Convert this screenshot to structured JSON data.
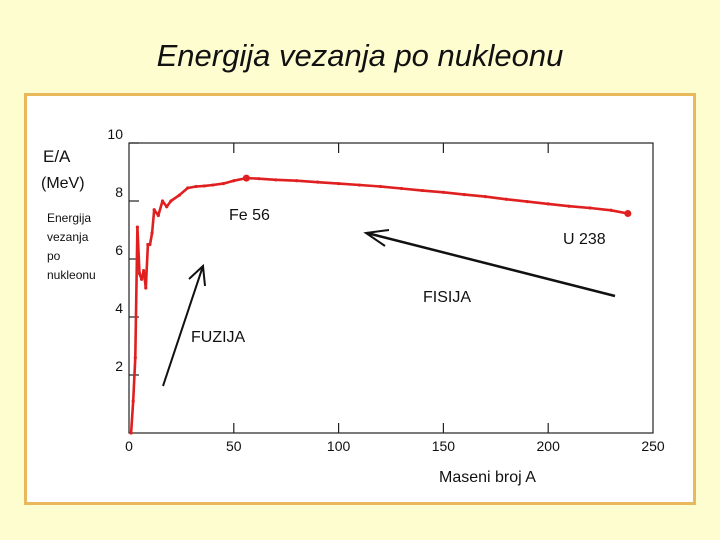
{
  "slide_title": "Energija vezanja po nukleonu",
  "chart_data": {
    "type": "line",
    "ylabel": "E/A",
    "ylabel_unit": "(MeV)",
    "ylabel_desc": [
      "Energija",
      "vezanja",
      "po",
      "nukleonu"
    ],
    "xlabel": "Maseni broj  A",
    "xlim": [
      0,
      250
    ],
    "ylim": [
      0,
      10
    ],
    "x_ticks": [
      0,
      50,
      100,
      150,
      200,
      250
    ],
    "y_ticks": [
      2,
      4,
      6,
      8,
      10
    ],
    "series": [
      {
        "color": "#e02020",
        "x": [
          1,
          2,
          3,
          4,
          5,
          6,
          7,
          8,
          9,
          10,
          11,
          12,
          14,
          16,
          18,
          20,
          24,
          28,
          32,
          36,
          40,
          45,
          50,
          56,
          62,
          70,
          80,
          90,
          100,
          110,
          120,
          130,
          140,
          150,
          160,
          170,
          180,
          190,
          200,
          210,
          220,
          230,
          238
        ],
        "y": [
          0.0,
          1.1,
          2.6,
          7.1,
          5.5,
          5.3,
          5.6,
          5.0,
          6.5,
          6.5,
          6.9,
          7.7,
          7.5,
          8.0,
          7.8,
          8.0,
          8.2,
          8.45,
          8.5,
          8.52,
          8.55,
          8.6,
          8.7,
          8.79,
          8.77,
          8.73,
          8.7,
          8.65,
          8.6,
          8.55,
          8.5,
          8.43,
          8.36,
          8.3,
          8.22,
          8.15,
          8.06,
          7.98,
          7.9,
          7.82,
          7.76,
          7.68,
          7.57
        ]
      }
    ],
    "annotations": {
      "fe": "Fe 56",
      "u": "U 238",
      "fission": "FISIJA",
      "fusion": "FUZIJA"
    }
  }
}
